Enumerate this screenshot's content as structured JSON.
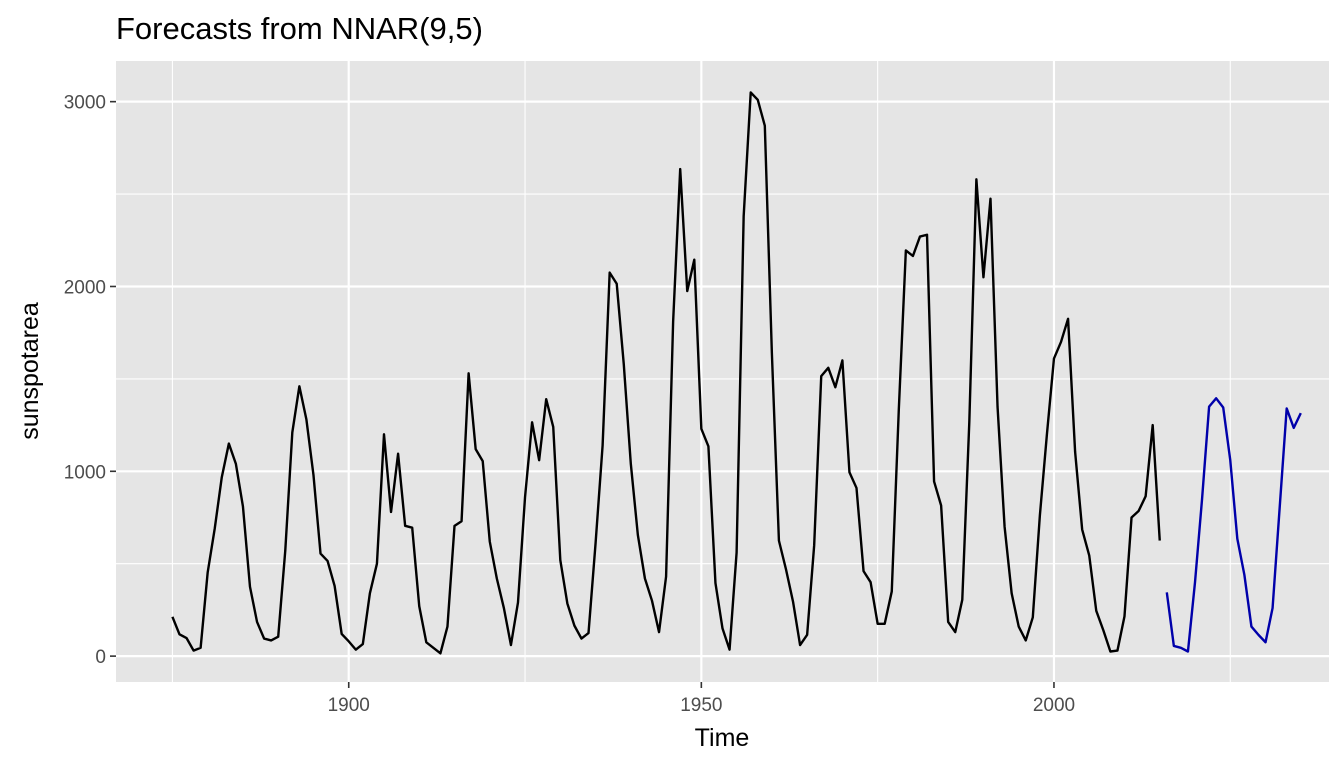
{
  "chart_data": {
    "type": "line",
    "title": "Forecasts from NNAR(9,5)",
    "xlabel": "Time",
    "ylabel": "sunspotarea",
    "xlim": [
      1867,
      2039
    ],
    "ylim": [
      -140,
      3220
    ],
    "x_ticks": [
      1900,
      1950,
      2000
    ],
    "y_ticks": [
      0,
      1000,
      2000,
      3000
    ],
    "grid": true,
    "colors": {
      "panel": "#e5e5e5",
      "grid": "#ffffff",
      "observed": "#000000",
      "forecast": "#0000aa",
      "tick_label": "#4d4d4d",
      "tick_mark": "#333333"
    },
    "series": [
      {
        "color": "#000000",
        "x": [
          1875,
          1876,
          1877,
          1878,
          1879,
          1880,
          1881,
          1882,
          1883,
          1884,
          1885,
          1886,
          1887,
          1888,
          1889,
          1890,
          1891,
          1892,
          1893,
          1894,
          1895,
          1896,
          1897,
          1898,
          1899,
          1900,
          1901,
          1902,
          1903,
          1904,
          1905,
          1906,
          1907,
          1908,
          1909,
          1910,
          1911,
          1912,
          1913,
          1914,
          1915,
          1916,
          1917,
          1918,
          1919,
          1920,
          1921,
          1922,
          1923,
          1924,
          1925,
          1926,
          1927,
          1928,
          1929,
          1930,
          1931,
          1932,
          1933,
          1934,
          1935,
          1936,
          1937,
          1938,
          1939,
          1940,
          1941,
          1942,
          1943,
          1944,
          1945,
          1946,
          1947,
          1948,
          1949,
          1950,
          1951,
          1952,
          1953,
          1954,
          1955,
          1956,
          1957,
          1958,
          1959,
          1960,
          1961,
          1962,
          1963,
          1964,
          1965,
          1966,
          1967,
          1968,
          1969,
          1970,
          1971,
          1972,
          1973,
          1974,
          1975,
          1976,
          1977,
          1978,
          1979,
          1980,
          1981,
          1982,
          1983,
          1984,
          1985,
          1986,
          1987,
          1988,
          1989,
          1990,
          1991,
          1992,
          1993,
          1994,
          1995,
          1996,
          1997,
          1998,
          1999,
          2000,
          2001,
          2002,
          2003,
          2004,
          2005,
          2006,
          2007,
          2008,
          2009,
          2010,
          2011,
          2012,
          2013,
          2014,
          2015
        ],
        "values": [
          213,
          118,
          98,
          30,
          45,
          453,
          690,
          968,
          1150,
          1040,
          810,
          375,
          185,
          95,
          85,
          105,
          570,
          1210,
          1460,
          1280,
          980,
          555,
          515,
          380,
          120,
          80,
          35,
          65,
          340,
          500,
          1200,
          780,
          1095,
          705,
          695,
          270,
          75,
          45,
          15,
          160,
          705,
          730,
          1530,
          1120,
          1055,
          620,
          420,
          260,
          60,
          290,
          860,
          1265,
          1060,
          1390,
          1240,
          520,
          285,
          165,
          95,
          125,
          610,
          1140,
          2075,
          2015,
          1580,
          1040,
          655,
          420,
          300,
          130,
          430,
          1810,
          2635,
          1975,
          2145,
          1230,
          1135,
          395,
          150,
          35,
          560,
          2380,
          3050,
          3010,
          2870,
          1640,
          625,
          470,
          295,
          60,
          115,
          600,
          1515,
          1560,
          1455,
          1600,
          995,
          910,
          460,
          400,
          175,
          175,
          350,
          1335,
          2195,
          2165,
          2270,
          2280,
          945,
          815,
          185,
          130,
          305,
          1270,
          2580,
          2050,
          2475,
          1350,
          700,
          340,
          160,
          85,
          210,
          760,
          1200,
          1610,
          1700,
          1825,
          1105,
          685,
          545,
          245,
          140,
          25,
          30,
          215,
          750,
          785,
          865,
          1250,
          625
        ]
      },
      {
        "color": "#0000aa",
        "x": [
          2016,
          2017,
          2018,
          2019,
          2020,
          2021,
          2022,
          2023,
          2024,
          2025,
          2026,
          2027,
          2028,
          2029,
          2030,
          2031,
          2032,
          2033,
          2034,
          2035
        ],
        "values": [
          345,
          55,
          45,
          25,
          400,
          850,
          1350,
          1395,
          1345,
          1060,
          635,
          440,
          160,
          115,
          75,
          260,
          800,
          1340,
          1235,
          1315
        ]
      }
    ]
  }
}
